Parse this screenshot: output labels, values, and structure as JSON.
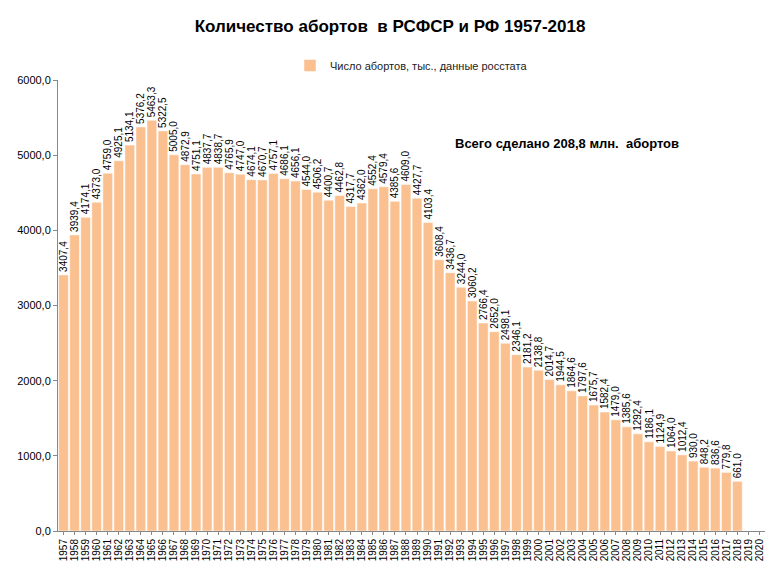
{
  "chart_data": {
    "type": "bar",
    "title": "Количество абортов  в РСФСР и РФ 1957-2018",
    "annotations": [
      "Всего сделано 208,8 млн.  абортов"
    ],
    "categories": [
      "1957",
      "1958",
      "1959",
      "1960",
      "1961",
      "1962",
      "1963",
      "1964",
      "1965",
      "1966",
      "1967",
      "1968",
      "1969",
      "1970",
      "1971",
      "1972",
      "1973",
      "1974",
      "1975",
      "1976",
      "1977",
      "1978",
      "1979",
      "1980",
      "1981",
      "1982",
      "1983",
      "1984",
      "1985",
      "1986",
      "1987",
      "1988",
      "1989",
      "1990",
      "1991",
      "1992",
      "1993",
      "1994",
      "1995",
      "1996",
      "1997",
      "1998",
      "1999",
      "2000",
      "2001",
      "2002",
      "2003",
      "2004",
      "2005",
      "2006",
      "2007",
      "2008",
      "2009",
      "2010",
      "2011",
      "2012",
      "2013",
      "2014",
      "2015",
      "2016",
      "2017",
      "2018",
      "2019",
      "2020"
    ],
    "series": [
      {
        "name": "Число абортов, тыс., данные росстата",
        "color": "#fac090",
        "values": [
          3407.4,
          3939.4,
          4174.1,
          4373.0,
          4759.0,
          4925.1,
          5134.1,
          5376.2,
          5463.3,
          5322.5,
          5005.0,
          4872.9,
          4751.1,
          4837.7,
          4838.7,
          4765.9,
          4747.0,
          4674.1,
          4670.7,
          4757.1,
          4686.1,
          4656.1,
          4544.0,
          4506.2,
          4400.7,
          4462.8,
          4317.7,
          4362.0,
          4552.4,
          4579.4,
          4385.6,
          4609.0,
          4427.7,
          4103.4,
          3608.4,
          3436.7,
          3244.0,
          3060.2,
          2766.4,
          2652.0,
          2498.1,
          2346.1,
          2181.2,
          2138.8,
          2014.7,
          1944.5,
          1864.6,
          1797.6,
          1675.7,
          1582.4,
          1479.0,
          1385.6,
          1292.4,
          1186.1,
          1124.9,
          1064.0,
          1012.4,
          930.0,
          848.2,
          836.6,
          779.8,
          661.0,
          null,
          null
        ],
        "value_labels": [
          "3407,4",
          "3939,4",
          "4174,1",
          "4373,0",
          "4759,0",
          "4925,1",
          "5134,1",
          "5376,2",
          "5463,3",
          "5322,5",
          "5005,0",
          "4872,9",
          "4751,1",
          "4837,7",
          "4838,7",
          "4765,9",
          "4747,0",
          "4674,1",
          "4670,7",
          "4757,1",
          "4686,1",
          "4656,1",
          "4544,0",
          "4506,2",
          "4400,7",
          "4462,8",
          "4317,7",
          "4362,0",
          "4552,4",
          "4579,4",
          "4385,6",
          "4609,0",
          "4427,7",
          "4103,4",
          "3608,4",
          "3436,7",
          "3244,0",
          "3060,2",
          "2766,4",
          "2652,0",
          "2498,1",
          "2346,1",
          "2181,2",
          "2138,8",
          "2014,7",
          "1944,5",
          "1864,6",
          "1797,6",
          "1675,7",
          "1582,4",
          "1479,0",
          "1385,6",
          "1292,4",
          "1186,1",
          "1124,9",
          "1064,0",
          "1012,4",
          "930,0",
          "848,2",
          "836,6",
          "779,8",
          "661,0",
          null,
          null
        ]
      }
    ],
    "ylim": [
      0,
      6000
    ],
    "yticks": [
      {
        "value": 0,
        "label": "0,0"
      },
      {
        "value": 1000,
        "label": "1000,0"
      },
      {
        "value": 2000,
        "label": "2000,0"
      },
      {
        "value": 3000,
        "label": "3000,0"
      },
      {
        "value": 4000,
        "label": "4000,0"
      },
      {
        "value": 5000,
        "label": "5000,0"
      },
      {
        "value": 6000,
        "label": "6000,0"
      }
    ],
    "grid": false,
    "legend": "top",
    "data_labels": true
  }
}
